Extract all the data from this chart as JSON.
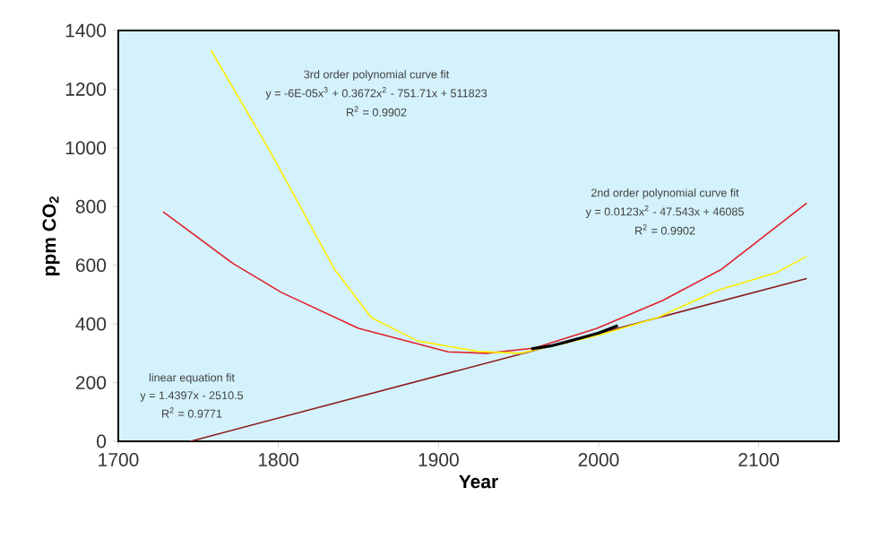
{
  "chart_data": {
    "type": "line",
    "xlabel": "Year",
    "ylabel": "ppm CO$_{2}$",
    "xlim": [
      1700,
      2150
    ],
    "ylim": [
      0,
      1400
    ],
    "xticks": [
      1700,
      1800,
      1900,
      2000,
      2100
    ],
    "yticks": [
      0,
      200,
      400,
      600,
      800,
      1000,
      1200,
      1400
    ],
    "grid": false,
    "marker": "none",
    "line_style": "solid",
    "series": [
      {
        "color": "#8b1a1a",
        "x": [
          1745,
          2130
        ],
        "values": [
          0,
          555
        ]
      },
      {
        "color": "#e0202a",
        "x": [
          1728,
          1772,
          1802,
          1850,
          1906,
          1930,
          1960,
          1999,
          2040,
          2077,
          2130
        ],
        "values": [
          782,
          605,
          507,
          385,
          305,
          300,
          318,
          385,
          480,
          587,
          812
        ]
      },
      {
        "color": "#ffee00",
        "x": [
          1758,
          1794,
          1835,
          1858,
          1887,
          1925,
          1951,
          1999,
          2037,
          2074,
          2111,
          2130
        ],
        "values": [
          1332,
          996,
          587,
          422,
          342,
          306,
          300,
          360,
          422,
          514,
          575,
          630
        ]
      },
      {
        "color": "#000000",
        "x": [
          1958,
          1970,
          1980,
          1990,
          2000,
          2012
        ],
        "values": [
          315,
          325,
          339,
          354,
          369,
          394
        ]
      }
    ],
    "annotations": [
      "3rd order polynomial curve fit",
      "y = -6E-05x$^{3}$ + 0.3672x$^{2}$ - 751.71x + 511823",
      "R$^{2}$ = 0.9902",
      "2nd order polynomial curve fit",
      "y = 0.0123x$^{2}$ - 47.543x + 46085",
      "R$^{2}$ = 0.9902",
      "linear equation fit",
      "y = 1.4397x - 2510.5",
      "R$^{2}$ = 0.9771"
    ]
  }
}
